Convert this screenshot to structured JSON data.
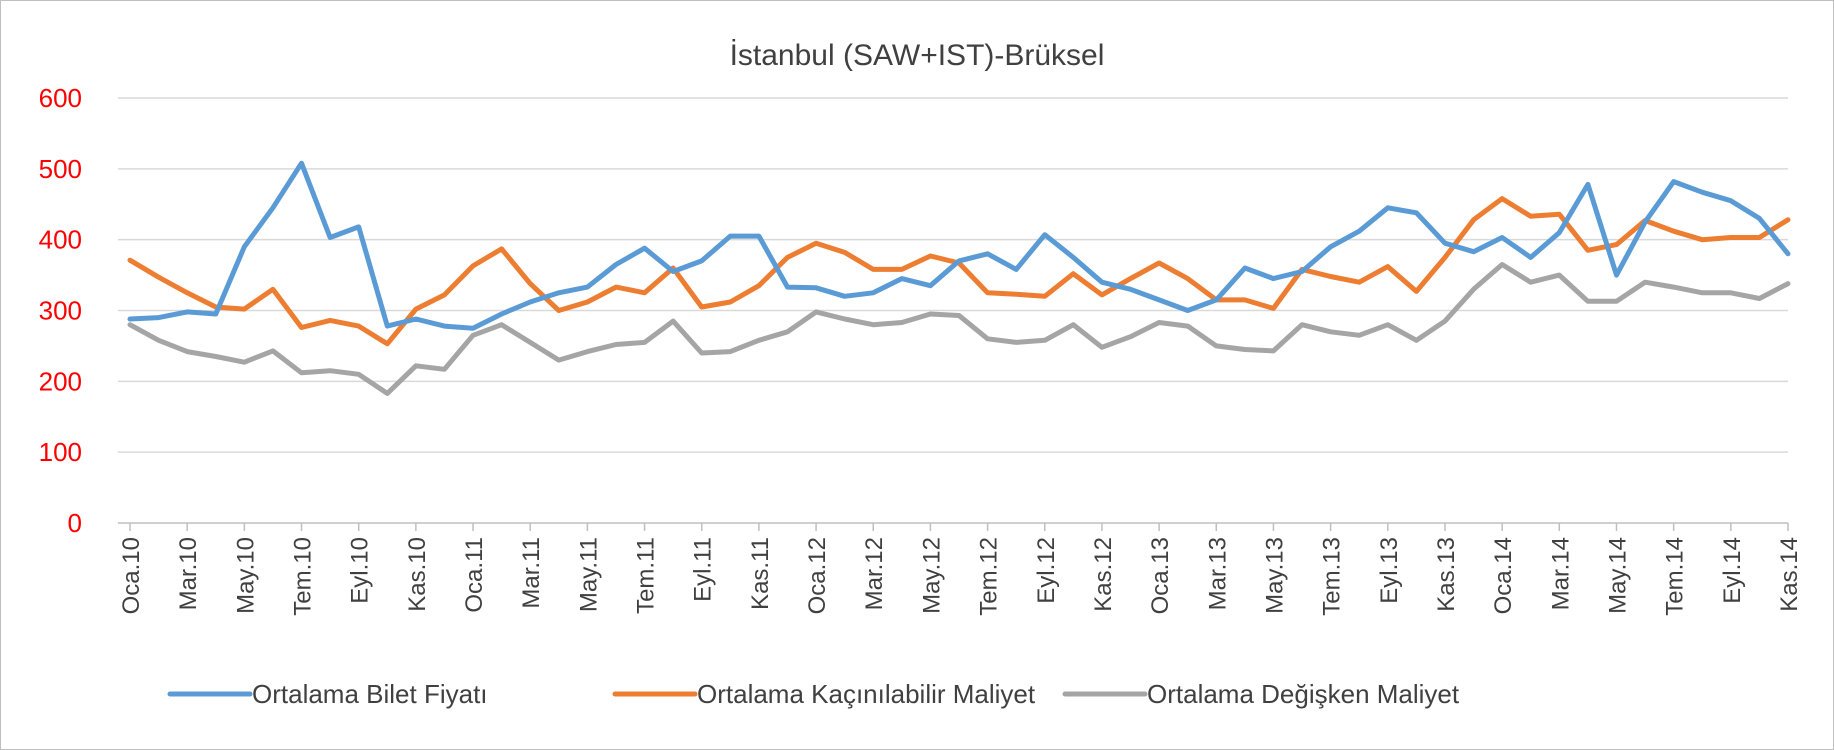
{
  "chart_data": {
    "type": "line",
    "title": "İstanbul (SAW+IST)-Brüksel",
    "xlabel": "",
    "ylabel": "",
    "ylim": [
      0,
      600
    ],
    "yticks": [
      0,
      100,
      200,
      300,
      400,
      500,
      600
    ],
    "grid": true,
    "legend_position": "bottom",
    "x": [
      "Oca.10",
      "Şub.10",
      "Mar.10",
      "Nis.10",
      "May.10",
      "Haz.10",
      "Tem.10",
      "Ağu.10",
      "Eyl.10",
      "Eki.10",
      "Kas.10",
      "Ara.10",
      "Oca.11",
      "Şub.11",
      "Mar.11",
      "Nis.11",
      "May.11",
      "Haz.11",
      "Tem.11",
      "Ağu.11",
      "Eyl.11",
      "Eki.11",
      "Kas.11",
      "Ara.11",
      "Oca.12",
      "Şub.12",
      "Mar.12",
      "Nis.12",
      "May.12",
      "Haz.12",
      "Tem.12",
      "Ağu.12",
      "Eyl.12",
      "Eki.12",
      "Kas.12",
      "Ara.12",
      "Oca.13",
      "Şub.13",
      "Mar.13",
      "Nis.13",
      "May.13",
      "Haz.13",
      "Tem.13",
      "Ağu.13",
      "Eyl.13",
      "Eki.13",
      "Kas.13",
      "Ara.13",
      "Oca.14",
      "Şub.14",
      "Mar.14",
      "Nis.14",
      "May.14",
      "Haz.14",
      "Tem.14",
      "Ağu.14",
      "Eyl.14",
      "Eki.14",
      "Kas.14"
    ],
    "tick_labels": [
      "Oca.10",
      "Mar.10",
      "May.10",
      "Tem.10",
      "Eyl.10",
      "Kas.10",
      "Oca.11",
      "Mar.11",
      "May.11",
      "Tem.11",
      "Eyl.11",
      "Kas.11",
      "Oca.12",
      "Mar.12",
      "May.12",
      "Tem.12",
      "Eyl.12",
      "Kas.12",
      "Oca.13",
      "Mar.13",
      "May.13",
      "Tem.13",
      "Eyl.13",
      "Kas.13",
      "Oca.14",
      "Mar.14",
      "May.14",
      "Tem.14",
      "Eyl.14",
      "Kas.14"
    ],
    "series": [
      {
        "name": "Ortalama Bilet Fiyatı",
        "color": "#5b9bd5",
        "values": [
          288,
          290,
          298,
          295,
          390,
          445,
          508,
          403,
          418,
          278,
          288,
          278,
          275,
          295,
          312,
          325,
          333,
          365,
          388,
          355,
          370,
          405,
          405,
          333,
          332,
          320,
          325,
          345,
          335,
          370,
          380,
          358,
          407,
          375,
          340,
          330,
          315,
          300,
          315,
          360,
          345,
          355,
          390,
          412,
          445,
          438,
          395,
          383,
          403,
          375,
          410,
          478,
          350,
          425,
          482,
          467,
          455,
          430,
          380
        ]
      },
      {
        "name": "Ortalama Kaçınılabilir Maliyet",
        "color": "#ed7d31",
        "values": [
          371,
          347,
          325,
          305,
          302,
          330,
          276,
          286,
          278,
          253,
          302,
          322,
          363,
          387,
          338,
          300,
          312,
          333,
          325,
          360,
          305,
          312,
          335,
          375,
          395,
          382,
          358,
          358,
          377,
          367,
          325,
          323,
          320,
          352,
          322,
          345,
          367,
          345,
          315,
          315,
          303,
          358,
          348,
          340,
          362,
          327,
          375,
          428,
          458,
          433,
          436,
          385,
          393,
          427,
          412,
          400,
          403,
          403,
          428
        ]
      },
      {
        "name": "Ortalama Değişken Maliyet",
        "color": "#a5a5a5",
        "values": [
          280,
          258,
          242,
          235,
          227,
          243,
          212,
          215,
          210,
          183,
          222,
          217,
          265,
          280,
          255,
          230,
          242,
          252,
          255,
          285,
          240,
          242,
          258,
          270,
          298,
          288,
          280,
          283,
          295,
          293,
          260,
          255,
          258,
          280,
          248,
          263,
          283,
          278,
          250,
          245,
          243,
          280,
          270,
          265,
          280,
          258,
          285,
          330,
          365,
          340,
          350,
          313,
          313,
          340,
          333,
          325,
          325,
          317,
          338
        ]
      }
    ]
  }
}
